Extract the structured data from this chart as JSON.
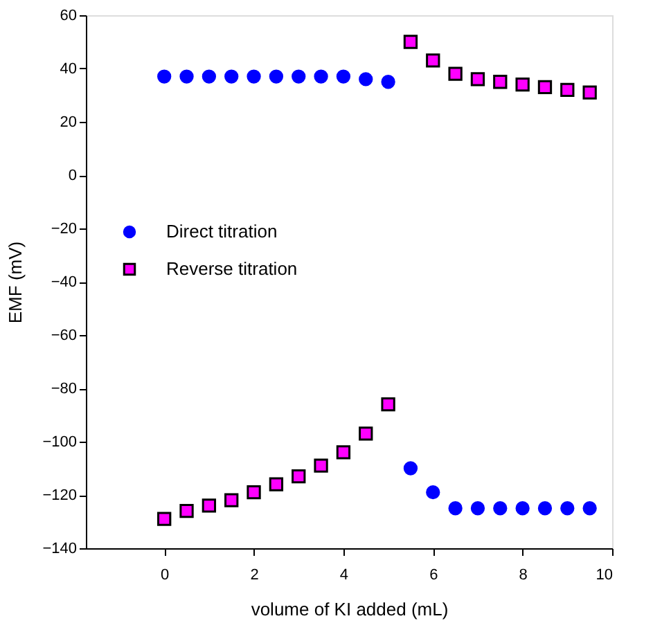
{
  "chart_data": {
    "type": "scatter",
    "xlabel": "volume of KI added (mL)",
    "ylabel": "EMF (mV)",
    "xlim": [
      -1.75,
      10
    ],
    "xticks": [
      0,
      2,
      4,
      6,
      8,
      10
    ],
    "ylim": [
      -140,
      60
    ],
    "yticks": [
      -140,
      -120,
      -100,
      -80,
      -60,
      -40,
      -20,
      0,
      20,
      40,
      60
    ],
    "grid": false,
    "legend": "left",
    "series": [
      {
        "name": "Direct titration",
        "color": "#0000ff",
        "marker": "circle",
        "x": [
          0,
          0.5,
          1,
          1.5,
          2,
          2.5,
          3,
          3.5,
          4,
          4.5,
          5,
          5.5,
          6,
          6.5,
          7,
          7.5,
          8,
          8.5,
          9,
          9.5
        ],
        "values": [
          37,
          37,
          37,
          37,
          37,
          37,
          37,
          37,
          37,
          36,
          35,
          -110,
          -119,
          -125,
          -125,
          -125,
          -125,
          -125,
          -125,
          -125
        ]
      },
      {
        "name": "Reverse titration",
        "color": "#ff00ff",
        "marker": "square",
        "x": [
          0,
          0.5,
          1,
          1.5,
          2,
          2.5,
          3,
          3.5,
          4,
          4.5,
          5,
          5.5,
          6,
          6.5,
          7,
          7.5,
          8,
          8.5,
          9,
          9.5
        ],
        "values": [
          -129,
          -126,
          -124,
          -122,
          -119,
          -116,
          -113,
          -109,
          -104,
          -97,
          -86,
          50,
          43,
          38,
          36,
          35,
          34,
          33,
          32,
          31
        ]
      }
    ]
  }
}
